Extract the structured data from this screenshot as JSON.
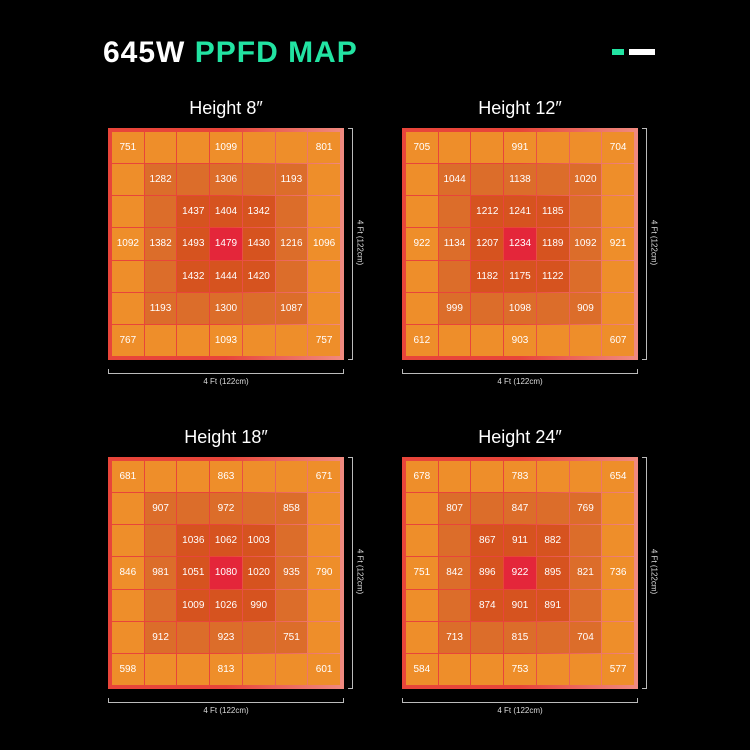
{
  "header": {
    "title_white": "645W",
    "title_accent": "PPFD MAP",
    "accent_color": "#22e3a2",
    "icon": "dash-icon"
  },
  "chart_data": [
    {
      "type": "heatmap",
      "title": "Height 8″",
      "xlabel": "4 Ft (122cm)",
      "ylabel": "4 Ft (122cm)",
      "grid": [
        [
          751,
          null,
          null,
          1099,
          null,
          null,
          801
        ],
        [
          null,
          1282,
          null,
          1306,
          null,
          1193,
          null
        ],
        [
          null,
          null,
          1437,
          1404,
          1342,
          null,
          null
        ],
        [
          1092,
          1382,
          1493,
          1479,
          1430,
          1216,
          1096
        ],
        [
          null,
          null,
          1432,
          1444,
          1420,
          null,
          null
        ],
        [
          null,
          1193,
          null,
          1300,
          null,
          1087,
          null
        ],
        [
          767,
          null,
          null,
          1093,
          null,
          null,
          757
        ]
      ]
    },
    {
      "type": "heatmap",
      "title": "Height 12″",
      "xlabel": "4 Ft (122cm)",
      "ylabel": "4 Ft (122cm)",
      "grid": [
        [
          705,
          null,
          null,
          991,
          null,
          null,
          704
        ],
        [
          null,
          1044,
          null,
          1138,
          null,
          1020,
          null
        ],
        [
          null,
          null,
          1212,
          1241,
          1185,
          null,
          null
        ],
        [
          922,
          1134,
          1207,
          1234,
          1189,
          1092,
          921
        ],
        [
          null,
          null,
          1182,
          1175,
          1122,
          null,
          null
        ],
        [
          null,
          999,
          null,
          1098,
          null,
          909,
          null
        ],
        [
          612,
          null,
          null,
          903,
          null,
          null,
          607
        ]
      ]
    },
    {
      "type": "heatmap",
      "title": "Height 18″",
      "xlabel": "4 Ft (122cm)",
      "ylabel": "4 Ft (122cm)",
      "grid": [
        [
          681,
          null,
          null,
          863,
          null,
          null,
          671
        ],
        [
          null,
          907,
          null,
          972,
          null,
          858,
          null
        ],
        [
          null,
          null,
          1036,
          1062,
          1003,
          null,
          null
        ],
        [
          846,
          981,
          1051,
          1080,
          1020,
          935,
          790
        ],
        [
          null,
          null,
          1009,
          1026,
          990,
          null,
          null
        ],
        [
          null,
          912,
          null,
          923,
          null,
          751,
          null
        ],
        [
          598,
          null,
          null,
          813,
          null,
          null,
          601
        ]
      ]
    },
    {
      "type": "heatmap",
      "title": "Height 24″",
      "xlabel": "4 Ft (122cm)",
      "ylabel": "4 Ft (122cm)",
      "grid": [
        [
          678,
          null,
          null,
          783,
          null,
          null,
          654
        ],
        [
          null,
          807,
          null,
          847,
          null,
          769,
          null
        ],
        [
          null,
          null,
          867,
          911,
          882,
          null,
          null
        ],
        [
          751,
          842,
          896,
          922,
          895,
          821,
          736
        ],
        [
          null,
          null,
          874,
          901,
          891,
          null,
          null
        ],
        [
          null,
          713,
          null,
          815,
          null,
          704,
          null
        ],
        [
          584,
          null,
          null,
          753,
          null,
          null,
          577
        ]
      ]
    }
  ],
  "colors": {
    "center": "#e4263a",
    "inner": "#d6531f",
    "middle": "#dc6d2a",
    "outer": "#ee8e2a"
  }
}
